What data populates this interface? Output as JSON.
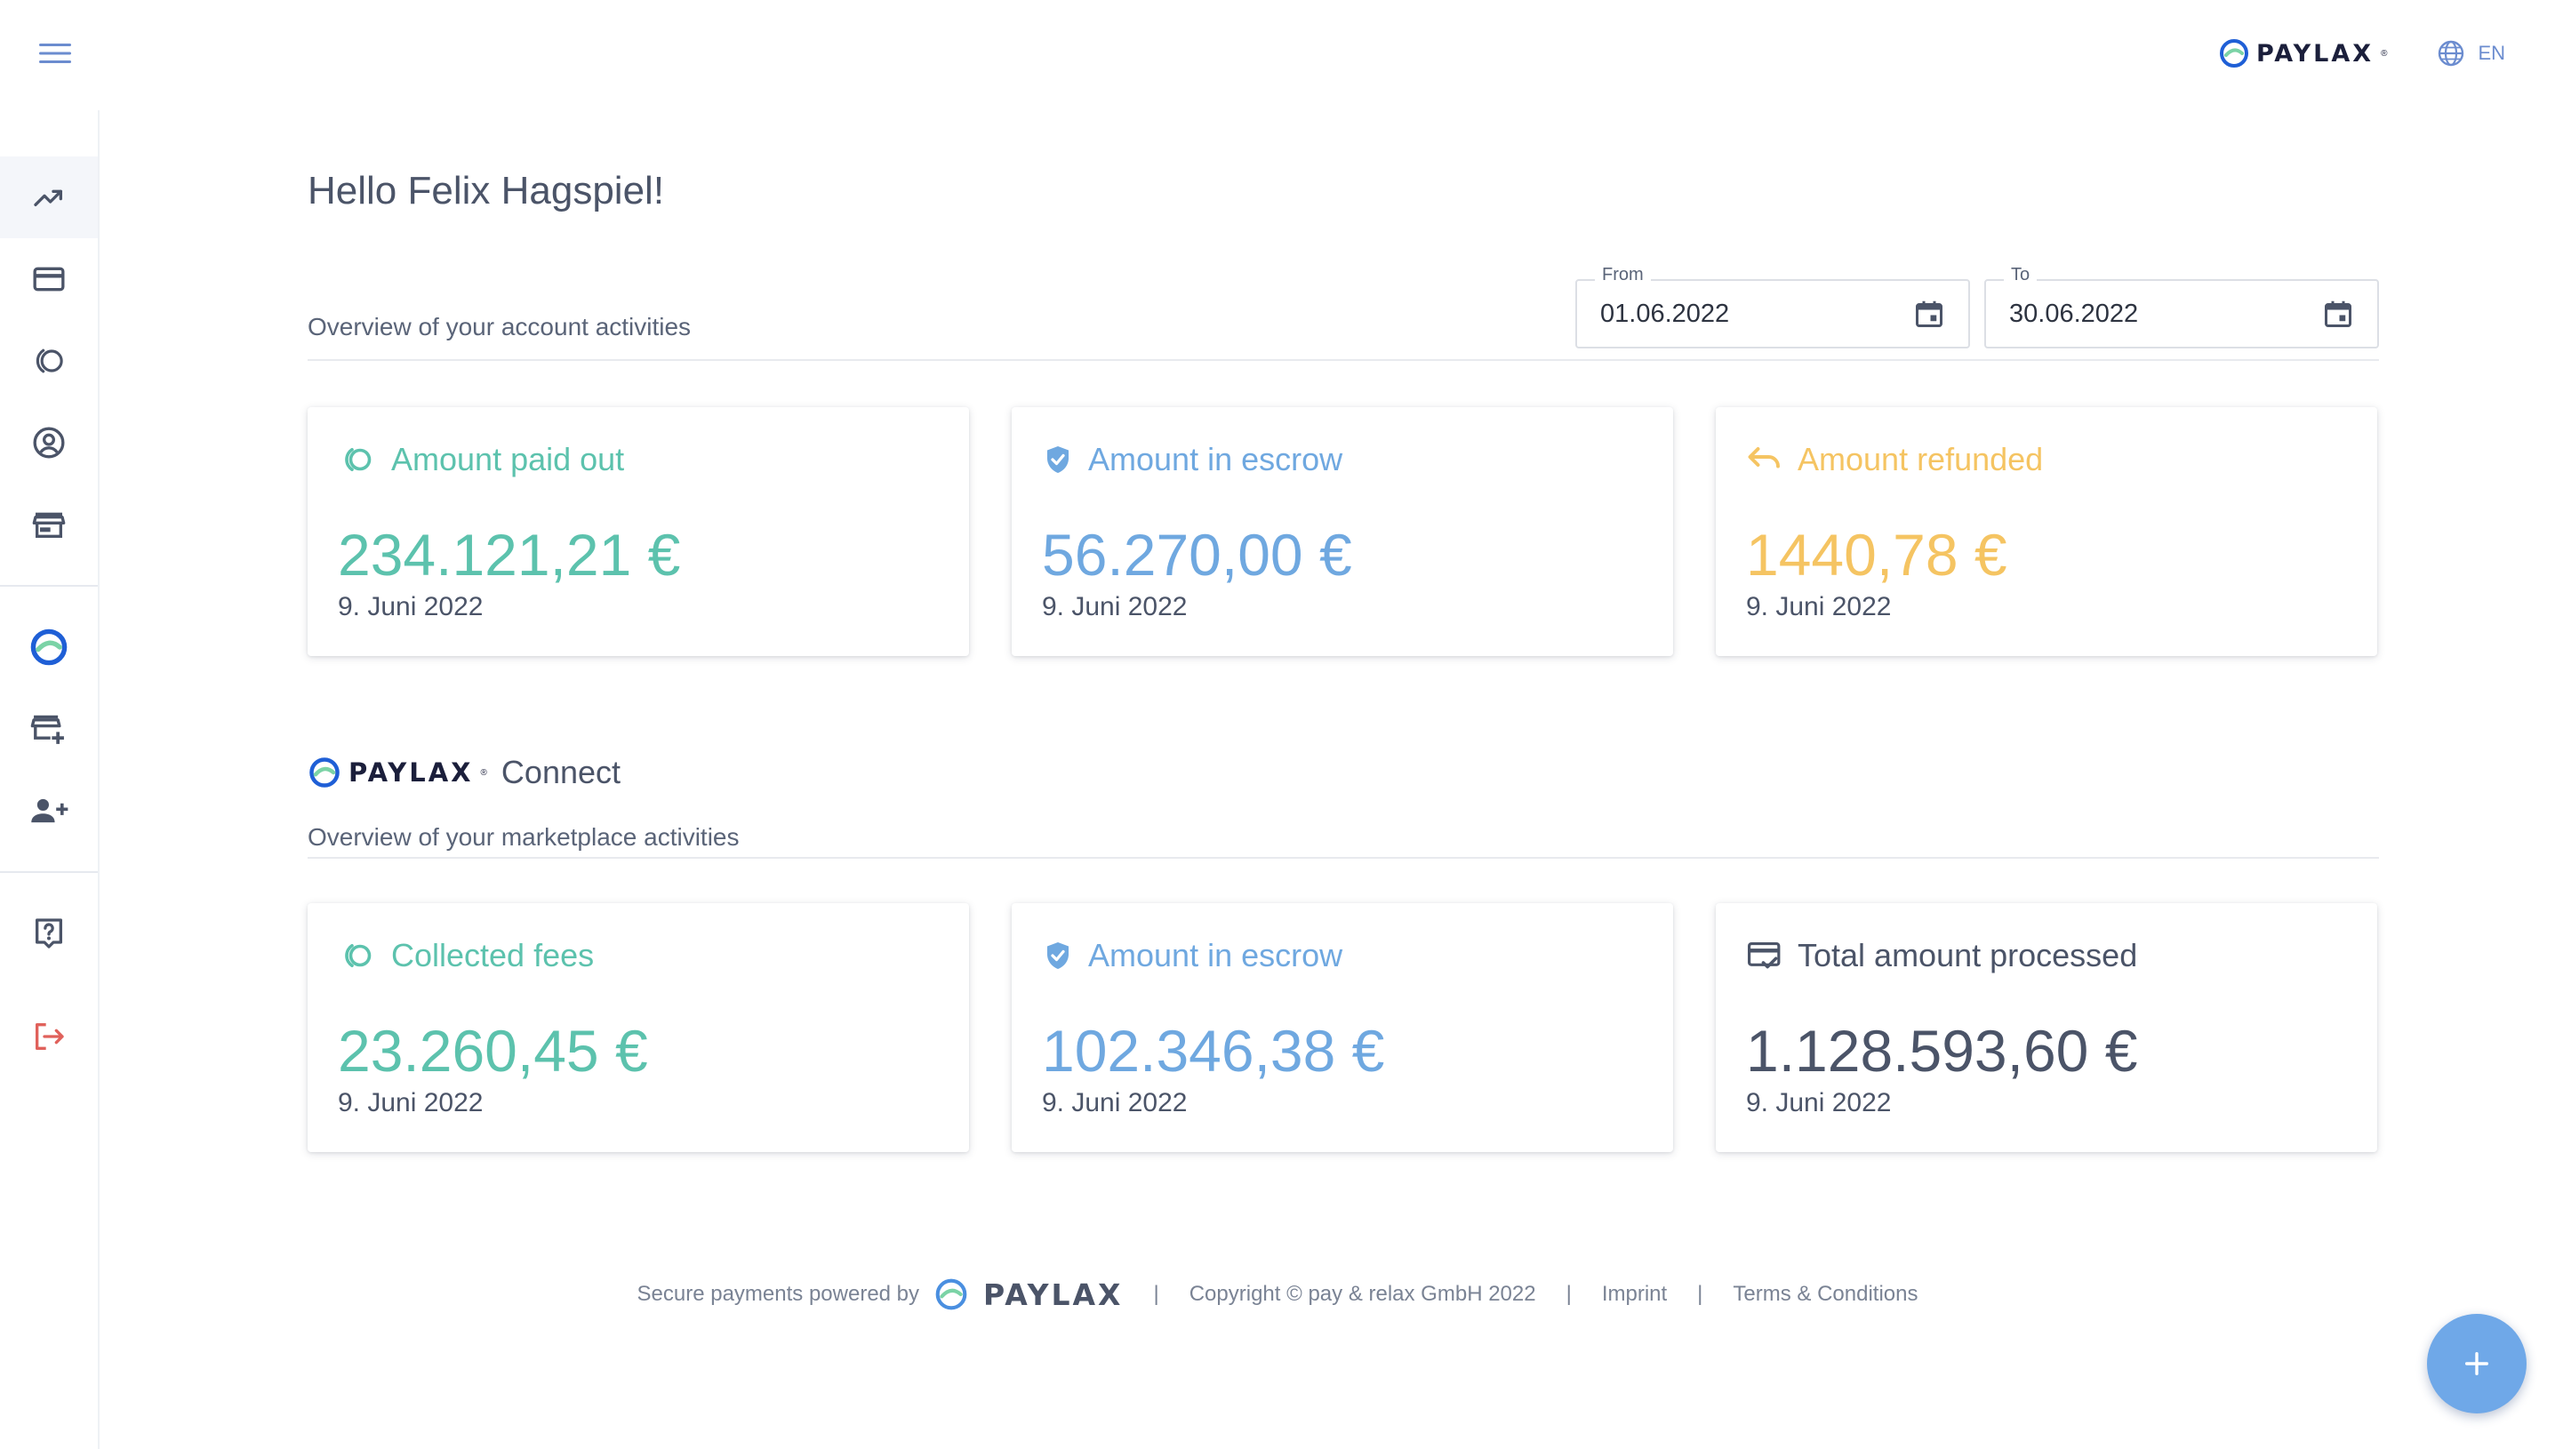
{
  "app": {
    "brand": "PAYLAX",
    "brand_mark": "®"
  },
  "topbar": {
    "menu_icon": "hamburger-menu-icon",
    "language": "EN",
    "language_icon": "globe-icon"
  },
  "sidebar": {
    "group1": [
      {
        "id": "dashboard",
        "icon": "trending-up-icon",
        "active": true
      },
      {
        "id": "payments",
        "icon": "credit-card-icon"
      },
      {
        "id": "payouts",
        "icon": "payout-rings-icon"
      },
      {
        "id": "account",
        "icon": "user-circle-icon"
      },
      {
        "id": "store",
        "icon": "storefront-icon"
      }
    ],
    "group2": [
      {
        "id": "paylax-connect",
        "icon": "paylax-logo-icon"
      },
      {
        "id": "add-store",
        "icon": "store-add-icon"
      },
      {
        "id": "add-user",
        "icon": "user-add-icon"
      }
    ],
    "group3": [
      {
        "id": "help",
        "icon": "help-icon"
      },
      {
        "id": "logout",
        "icon": "logout-icon"
      }
    ]
  },
  "main": {
    "greeting": "Hello Felix Hagspiel!",
    "overview_title": "Overview of your account activities",
    "date_from": {
      "label": "From",
      "value": "01.06.2022"
    },
    "date_to": {
      "label": "To",
      "value": "30.06.2022"
    },
    "account_cards": [
      {
        "label": "Amount paid out",
        "value": "234.121,21 €",
        "date": "9. Juni 2022",
        "color": "#5cc2ad",
        "icon": "payout-rings-icon"
      },
      {
        "label": "Amount in escrow",
        "value": "56.270,00 €",
        "date": "9. Juni 2022",
        "color": "#6fa8e0",
        "icon": "shield-check-icon"
      },
      {
        "label": "Amount refunded",
        "value": "1440,78 €",
        "date": "9. Juni 2022",
        "color": "#f5c462",
        "icon": "undo-arrow-icon"
      }
    ],
    "connect": {
      "brand": "PAYLAX",
      "word": "Connect",
      "subtitle": "Overview of your marketplace activities"
    },
    "market_cards": [
      {
        "label": "Collected fees",
        "value": "23.260,45 €",
        "date": "9. Juni 2022",
        "color": "#5cc2ad",
        "icon": "payout-rings-icon"
      },
      {
        "label": "Amount in escrow",
        "value": "102.346,38 €",
        "date": "9. Juni 2022",
        "color": "#6fa8e0",
        "icon": "shield-check-icon"
      },
      {
        "label": "Total amount processed",
        "value": "1.128.593,60 €",
        "date": "9. Juni 2022",
        "color": "#4b5468",
        "icon": "card-check-icon"
      }
    ]
  },
  "footer": {
    "powered_by": "Secure payments powered by",
    "brand": "PAYLAX",
    "copyright": "Copyright © pay & relax GmbH 2022",
    "imprint": "Imprint",
    "terms": "Terms & Conditions",
    "separator": "|"
  },
  "fab": {
    "icon": "plus-icon"
  }
}
